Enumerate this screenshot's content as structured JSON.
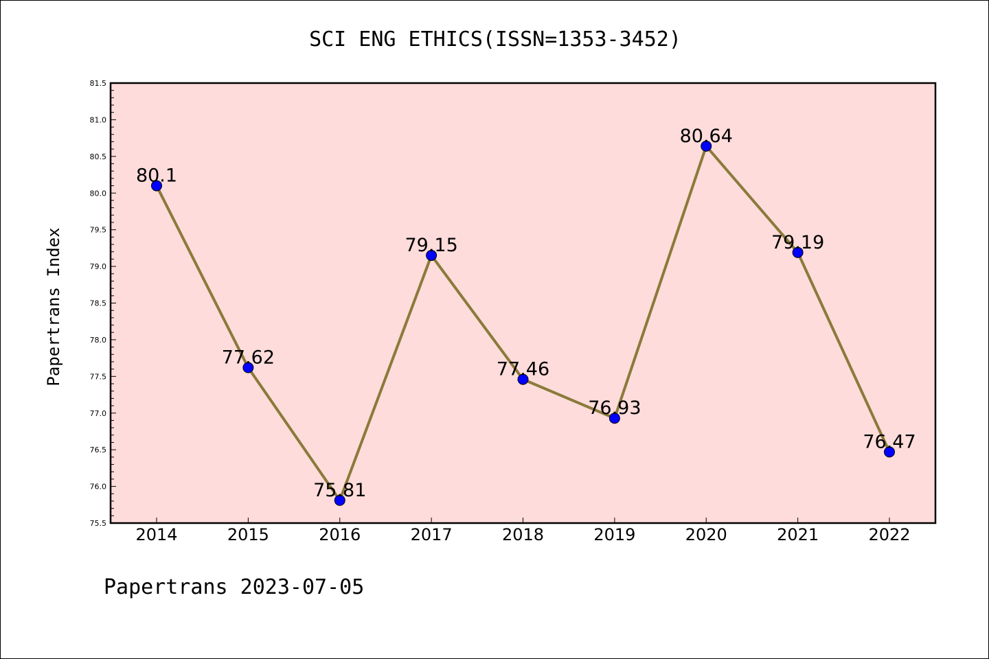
{
  "chart_data": {
    "type": "line",
    "title": "SCI ENG ETHICS(ISSN=1353-3452)",
    "xlabel": "",
    "ylabel": "Papertrans Index",
    "footer": "Papertrans 2023-07-05",
    "categories": [
      "2014",
      "2015",
      "2016",
      "2017",
      "2018",
      "2019",
      "2020",
      "2021",
      "2022"
    ],
    "series": [
      {
        "values": [
          80.1,
          77.62,
          75.81,
          79.15,
          77.46,
          76.93,
          80.64,
          79.19,
          76.47
        ],
        "labels": [
          "80.1",
          "77.62",
          "75.81",
          "79.15",
          "77.46",
          "76.93",
          "80.64",
          "79.19",
          "76.47"
        ],
        "line_color": "#8b7a3a",
        "marker_color": "#0000ff"
      }
    ],
    "ylim": [
      75.5,
      81.5
    ],
    "yticks": [
      "75.5",
      "76.0",
      "76.5",
      "77.0",
      "77.5",
      "78.0",
      "78.5",
      "79.0",
      "79.5",
      "80.0",
      "80.5",
      "81.0",
      "81.5"
    ],
    "plot_background": "#fddcdb",
    "grid": false,
    "legend": "none"
  }
}
